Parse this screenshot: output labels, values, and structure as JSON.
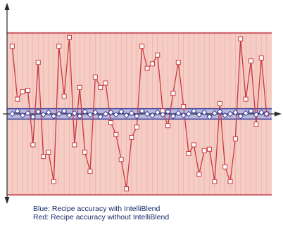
{
  "colors": {
    "red_band_fill": "#f6cdc4",
    "red_band_edge": "#cc5a61",
    "red_series": "#c8383f",
    "blue_band_fill": "#b9b8dc",
    "blue_band_edge": "#3a3c9a",
    "blue_series": "#3a3c9a",
    "axis": "#2a2a2a",
    "grid": "#e8a9a4"
  },
  "chart_data": {
    "type": "line",
    "title": "",
    "xlabel": "",
    "ylabel": "",
    "grid": true,
    "x": [
      1,
      2,
      3,
      4,
      5,
      6,
      7,
      8,
      9,
      10,
      11,
      12,
      13,
      14,
      15,
      16,
      17,
      18,
      19,
      20,
      21,
      22,
      23,
      24,
      25,
      26,
      27,
      28,
      29,
      30,
      31,
      32,
      33,
      34,
      35,
      36,
      37,
      38,
      39,
      40,
      41,
      42,
      43,
      44,
      45,
      46,
      47,
      48,
      49,
      50
    ],
    "xlim": [
      0,
      51
    ],
    "ylim": [
      -130,
      130
    ],
    "red_band": [
      -110,
      110
    ],
    "blue_band": [
      -7,
      7
    ],
    "series": [
      {
        "name": "",
        "marker": "square",
        "values": [
          92,
          20,
          30,
          32,
          -42,
          70,
          -58,
          -52,
          -92,
          92,
          24,
          104,
          -42,
          36,
          -52,
          -78,
          50,
          36,
          42,
          -12,
          -28,
          -62,
          -102,
          -32,
          -18,
          92,
          62,
          68,
          80,
          4,
          -16,
          28,
          70,
          10,
          -54,
          -42,
          -82,
          -50,
          -48,
          -92,
          14,
          -72,
          -92,
          -34,
          102,
          20,
          72,
          -14,
          76,
          0
        ]
      },
      {
        "name": "",
        "marker": "diamond",
        "values": [
          0,
          4,
          -2,
          1,
          -4,
          3,
          -1,
          2,
          -3,
          0,
          4,
          -2,
          1,
          -3,
          3,
          -1,
          2,
          -4,
          0,
          2,
          -1,
          3,
          -2,
          1,
          -3,
          4,
          0,
          -2,
          2,
          -1,
          3,
          -3,
          1,
          -2,
          0,
          4,
          -1,
          2,
          -4,
          1,
          3,
          -2,
          0,
          2,
          -3,
          1,
          4,
          -1,
          2,
          0
        ]
      }
    ]
  },
  "captions": {
    "blue": "Blue: Recipe accuracy with IntelliBlend",
    "red": "Red: Recipe accuracy without IntelliBlend"
  }
}
